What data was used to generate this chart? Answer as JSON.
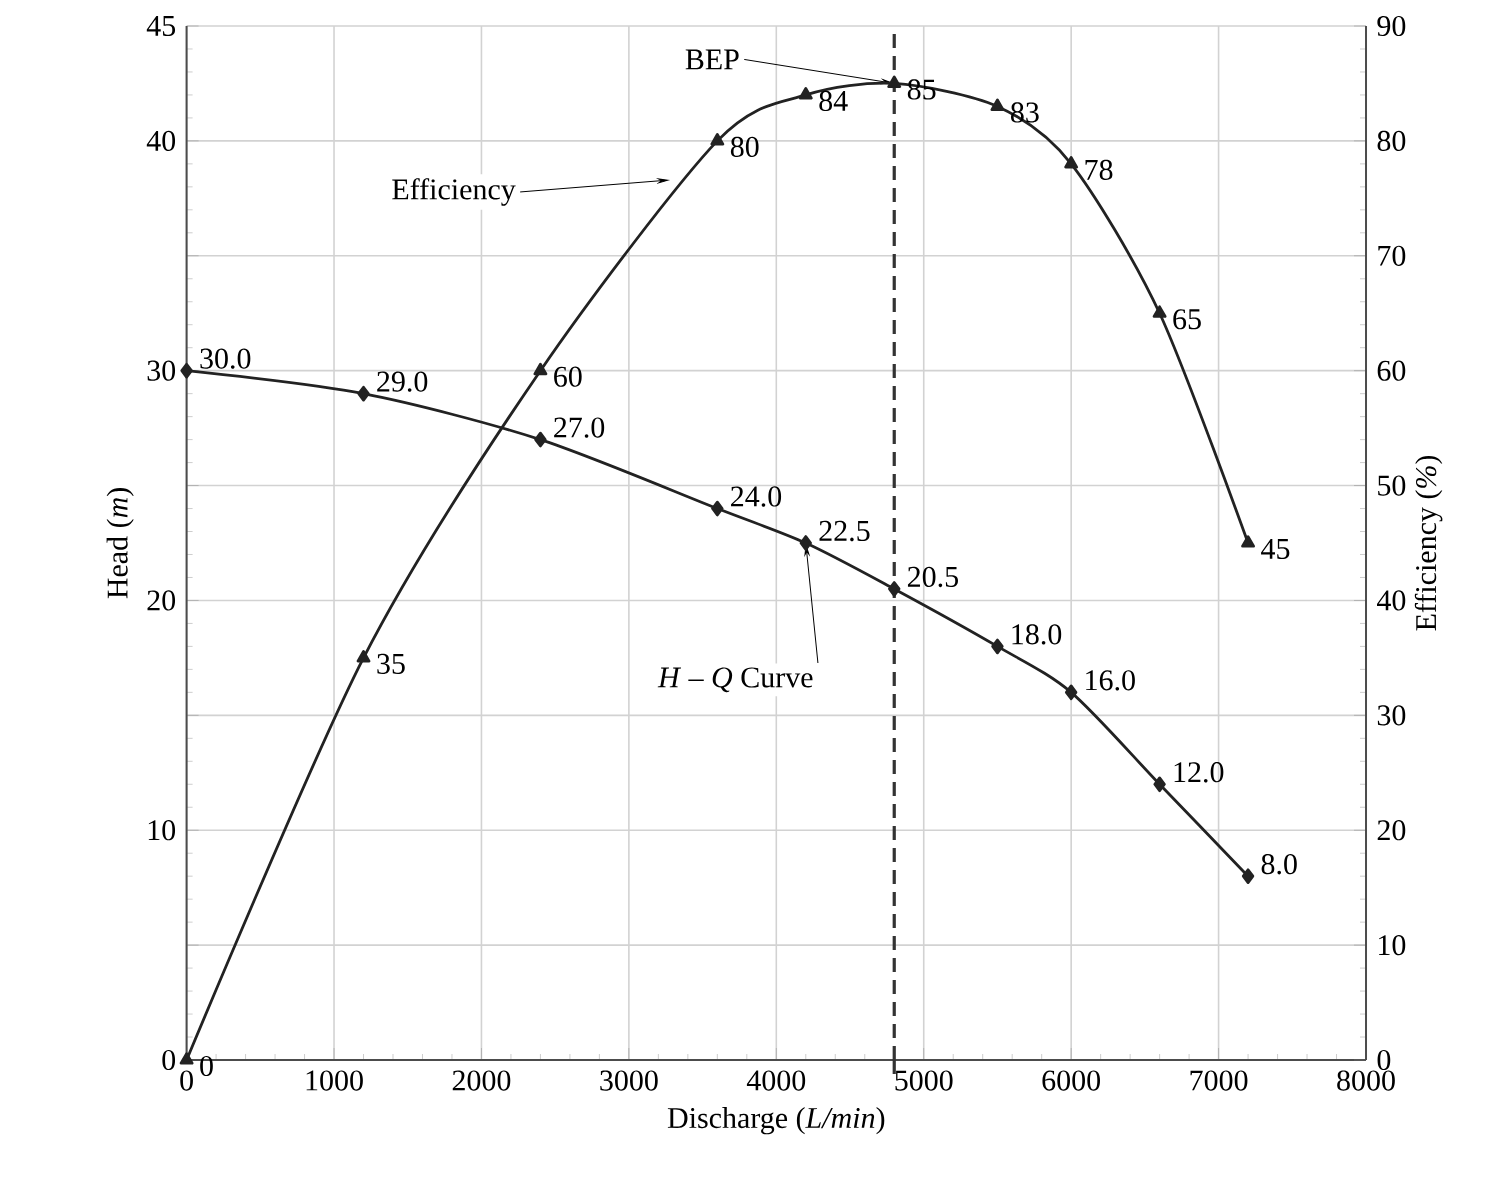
{
  "chart_data": {
    "type": "line",
    "xlabel": "Discharge (*L/min*)",
    "ylabel": "Head (*m*)",
    "y2label": "Efficiency (*%*)",
    "x": [
      0,
      1200,
      2400,
      3600,
      4200,
      4800,
      5500,
      6000,
      6600,
      7200
    ],
    "series": [
      {
        "color": "#222222",
        "marker": "diamond",
        "values": [
          30.0,
          29.0,
          27.0,
          24.0,
          22.5,
          20.5,
          18.0,
          16.0,
          12.0,
          8.0
        ],
        "value_labels": [
          "30.0",
          "29.0",
          "27.0",
          "24.0",
          "22.5",
          "20.5",
          "18.0",
          "16.0",
          "12.0",
          "8.0"
        ]
      },
      {
        "color": "#222222",
        "marker": "triangle",
        "axis": "y2",
        "values": [
          0,
          35,
          60,
          80,
          84,
          85,
          83,
          78,
          65,
          45
        ],
        "value_labels": [
          "0",
          "35",
          "60",
          "80",
          "84",
          "85",
          "83",
          "78",
          "65",
          "45"
        ]
      }
    ],
    "xlim": [
      0,
      8000
    ],
    "xticks": [
      0,
      1000,
      2000,
      3000,
      4000,
      5000,
      6000,
      7000,
      8000
    ],
    "ylim": [
      0,
      45
    ],
    "yticks": [
      0,
      {
        "value": 5,
        "label": null
      },
      10,
      {
        "value": 15,
        "label": null
      },
      20,
      {
        "value": 25,
        "label": null
      },
      30,
      {
        "value": 35,
        "label": null
      },
      40,
      45
    ],
    "y2lim": [
      0,
      90
    ],
    "y2ticks": [
      0,
      10,
      20,
      30,
      40,
      50,
      60,
      70,
      80,
      90
    ],
    "grid": true,
    "ref_lines": [
      {
        "axis": "x",
        "value": 4800,
        "color": "#333333",
        "line_style": "dashed"
      }
    ],
    "annotations": [
      {
        "text": "BEP",
        "x": 4800,
        "y": 42.5
      },
      {
        "text": "Efficiency",
        "x": 3280,
        "y": 38.3
      },
      {
        "text": "*H* – *Q* Curve",
        "x": 4200,
        "y": 22.5
      }
    ]
  }
}
